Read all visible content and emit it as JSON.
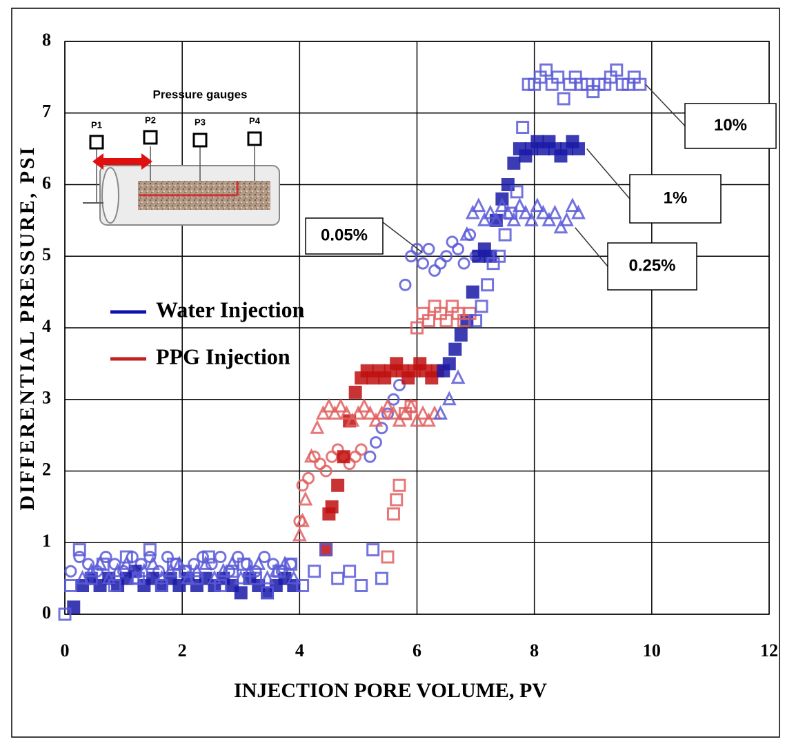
{
  "chart_data": {
    "type": "scatter",
    "xlabel": "INJECTION PORE VOLUME, PV",
    "ylabel": "DIFFERENTIAL PRESSURE,  PSI",
    "xlim": [
      0,
      12
    ],
    "xticks": [
      0,
      2,
      4,
      6,
      8,
      10,
      12
    ],
    "ylim": [
      0,
      8
    ],
    "yticks": [
      0,
      1,
      2,
      3,
      4,
      5,
      6,
      7,
      8
    ],
    "grid": true,
    "legend": [
      {
        "name": "Water Injection",
        "color": "#1010b0"
      },
      {
        "name": "PPG Injection",
        "color": "#c02020"
      }
    ],
    "inset": {
      "title": "Pressure gauges",
      "gauges": [
        "P1",
        "P2",
        "P3",
        "P4"
      ]
    },
    "series": [
      {
        "name": "0.05%",
        "marker": "circle",
        "filled": false,
        "segments": [
          {
            "color": "#5a5ad8",
            "x": [
              0.1,
              0.25,
              0.4,
              0.55,
              0.7,
              0.85,
              1.0,
              1.15,
              1.3,
              1.45,
              1.6,
              1.75,
              1.9,
              2.05,
              2.2,
              2.35,
              2.5,
              2.65,
              2.8,
              2.95,
              3.1,
              3.25,
              3.4,
              3.55,
              3.7,
              3.85
            ],
            "values": [
              0.6,
              0.8,
              0.7,
              0.6,
              0.8,
              0.7,
              0.6,
              0.8,
              0.7,
              0.8,
              0.6,
              0.8,
              0.7,
              0.6,
              0.7,
              0.8,
              0.7,
              0.8,
              0.6,
              0.8,
              0.7,
              0.6,
              0.8,
              0.7,
              0.6,
              0.7
            ]
          },
          {
            "color": "#e06060",
            "x": [
              4.0,
              4.05,
              4.15,
              4.25,
              4.35,
              4.45,
              4.55,
              4.65,
              4.75,
              4.85,
              4.95,
              5.05
            ],
            "values": [
              1.3,
              1.8,
              1.9,
              2.2,
              2.1,
              2.0,
              2.2,
              2.3,
              2.2,
              2.1,
              2.2,
              2.3
            ]
          },
          {
            "color": "#5a5ad8",
            "x": [
              5.2,
              5.3,
              5.4,
              5.5,
              5.6,
              5.7,
              5.8,
              5.9,
              6.0,
              6.1,
              6.2,
              6.3,
              6.4,
              6.5,
              6.6,
              6.7,
              6.8,
              6.9,
              7.0
            ],
            "values": [
              2.2,
              2.4,
              2.6,
              2.8,
              3.0,
              3.2,
              4.6,
              5.0,
              5.1,
              4.9,
              5.1,
              4.8,
              4.9,
              5.0,
              5.2,
              5.1,
              4.9,
              5.3,
              5.0
            ]
          }
        ]
      },
      {
        "name": "1%",
        "marker": "square",
        "filled": true,
        "segments": [
          {
            "color": "#1a1aa8",
            "x": [
              0.15,
              0.3,
              0.45,
              0.6,
              0.75,
              0.9,
              1.05,
              1.2,
              1.35,
              1.5,
              1.65,
              1.8,
              1.95,
              2.1,
              2.25,
              2.4,
              2.55,
              2.7,
              2.85,
              3.0,
              3.15,
              3.3,
              3.45,
              3.6,
              3.75,
              3.9
            ],
            "values": [
              0.1,
              0.4,
              0.5,
              0.4,
              0.5,
              0.4,
              0.5,
              0.6,
              0.4,
              0.5,
              0.4,
              0.5,
              0.4,
              0.5,
              0.4,
              0.5,
              0.4,
              0.5,
              0.4,
              0.3,
              0.5,
              0.4,
              0.3,
              0.4,
              0.5,
              0.4
            ]
          },
          {
            "color": "#c01010",
            "x": [
              4.45,
              4.5,
              4.55,
              4.65,
              4.75,
              4.85,
              4.95,
              5.05,
              5.15,
              5.25,
              5.35,
              5.45,
              5.55,
              5.65,
              5.75,
              5.85,
              5.95,
              6.05,
              6.15,
              6.25,
              6.35
            ],
            "values": [
              0.9,
              1.4,
              1.5,
              1.8,
              2.2,
              2.7,
              3.1,
              3.3,
              3.4,
              3.3,
              3.4,
              3.3,
              3.4,
              3.5,
              3.4,
              3.3,
              3.4,
              3.5,
              3.4,
              3.3,
              3.4
            ]
          },
          {
            "color": "#1a1aa8",
            "x": [
              6.45,
              6.55,
              6.65,
              6.75,
              6.85,
              6.95,
              7.05,
              7.15,
              7.25,
              7.35,
              7.45,
              7.55,
              7.65,
              7.75,
              7.85,
              7.95,
              8.05,
              8.15,
              8.25,
              8.35,
              8.45,
              8.55,
              8.65,
              8.75
            ],
            "values": [
              3.4,
              3.5,
              3.7,
              3.9,
              4.1,
              4.5,
              5.0,
              5.1,
              5.0,
              5.5,
              5.8,
              6.0,
              6.3,
              6.5,
              6.4,
              6.5,
              6.6,
              6.5,
              6.6,
              6.5,
              6.4,
              6.5,
              6.6,
              6.5
            ]
          }
        ]
      },
      {
        "name": "0.25%",
        "marker": "triangle",
        "filled": false,
        "segments": [
          {
            "color": "#5a5ad8",
            "x": [
              0.3,
              0.45,
              0.6,
              0.75,
              0.9,
              1.05,
              1.2,
              1.35,
              1.5,
              1.65,
              1.8,
              1.95,
              2.1,
              2.25,
              2.4,
              2.55,
              2.7,
              2.85,
              3.0,
              3.15,
              3.3,
              3.45,
              3.6,
              3.75,
              3.9
            ],
            "values": [
              0.5,
              0.6,
              0.7,
              0.5,
              0.6,
              0.7,
              0.5,
              0.6,
              0.7,
              0.5,
              0.6,
              0.7,
              0.5,
              0.6,
              0.7,
              0.5,
              0.6,
              0.7,
              0.5,
              0.6,
              0.7,
              0.5,
              0.6,
              0.7,
              0.5
            ]
          },
          {
            "color": "#e06060",
            "x": [
              4.0,
              4.05,
              4.1,
              4.2,
              4.3,
              4.4,
              4.5,
              4.6,
              4.7,
              4.8,
              4.9,
              5.0,
              5.1,
              5.2,
              5.3,
              5.4,
              5.5,
              5.6,
              5.7,
              5.8,
              5.9,
              6.0,
              6.1,
              6.2,
              6.3
            ],
            "values": [
              1.1,
              1.3,
              1.6,
              2.2,
              2.6,
              2.8,
              2.9,
              2.8,
              2.9,
              2.8,
              2.7,
              2.8,
              2.9,
              2.8,
              2.7,
              2.8,
              2.9,
              2.8,
              2.7,
              2.8,
              2.9,
              2.7,
              2.8,
              2.7,
              2.8
            ]
          },
          {
            "color": "#5a5ad8",
            "x": [
              6.4,
              6.55,
              6.7,
              6.85,
              6.95,
              7.05,
              7.15,
              7.25,
              7.35,
              7.45,
              7.55,
              7.65,
              7.75,
              7.85,
              7.95,
              8.05,
              8.15,
              8.25,
              8.35,
              8.45,
              8.55,
              8.65,
              8.75
            ],
            "values": [
              2.8,
              3.0,
              3.3,
              5.3,
              5.6,
              5.7,
              5.5,
              5.6,
              5.5,
              5.7,
              5.6,
              5.5,
              5.7,
              5.6,
              5.5,
              5.7,
              5.6,
              5.5,
              5.6,
              5.4,
              5.5,
              5.7,
              5.6
            ]
          }
        ]
      },
      {
        "name": "10%",
        "marker": "square",
        "filled": false,
        "segments": [
          {
            "color": "#5a5ad8",
            "x": [
              0,
              0.1,
              0.25,
              0.45,
              0.65,
              0.85,
              1.05,
              1.25,
              1.45,
              1.65,
              1.85,
              2.05,
              2.25,
              2.45,
              2.65,
              2.85,
              3.05,
              3.25,
              3.45,
              3.65,
              3.85,
              4.05,
              4.25,
              4.45,
              4.65,
              4.85,
              5.05,
              5.25,
              5.4
            ],
            "values": [
              0,
              0.4,
              0.9,
              0.5,
              0.7,
              0.4,
              0.8,
              0.5,
              0.9,
              0.4,
              0.7,
              0.6,
              0.5,
              0.8,
              0.4,
              0.6,
              0.7,
              0.5,
              0.3,
              0.6,
              0.7,
              0.4,
              0.6,
              0.9,
              0.5,
              0.6,
              0.4,
              0.9,
              0.5
            ]
          },
          {
            "color": "#e06060",
            "x": [
              5.5,
              5.6,
              5.65,
              5.7,
              5.8,
              5.9,
              6.0,
              6.1,
              6.2,
              6.3,
              6.4,
              6.5,
              6.6,
              6.7,
              6.8,
              6.9
            ],
            "values": [
              0.8,
              1.4,
              1.6,
              1.8,
              2.8,
              2.9,
              4.0,
              4.2,
              4.1,
              4.3,
              4.2,
              4.1,
              4.3,
              4.2,
              4.1,
              4.2
            ]
          },
          {
            "color": "#5a5ad8",
            "x": [
              7.0,
              7.1,
              7.2,
              7.3,
              7.4,
              7.5,
              7.6,
              7.7,
              7.8,
              7.9,
              8.0,
              8.1,
              8.2,
              8.3,
              8.4,
              8.5,
              8.6,
              8.7,
              8.8,
              8.9,
              9.0,
              9.1,
              9.2,
              9.3,
              9.4,
              9.5,
              9.6,
              9.7,
              9.8
            ],
            "values": [
              4.1,
              4.3,
              4.6,
              4.9,
              5.0,
              5.3,
              5.6,
              5.9,
              6.8,
              7.4,
              7.4,
              7.5,
              7.6,
              7.4,
              7.5,
              7.2,
              7.4,
              7.5,
              7.4,
              7.4,
              7.3,
              7.4,
              7.4,
              7.5,
              7.6,
              7.4,
              7.4,
              7.5,
              7.4
            ]
          }
        ]
      }
    ]
  }
}
